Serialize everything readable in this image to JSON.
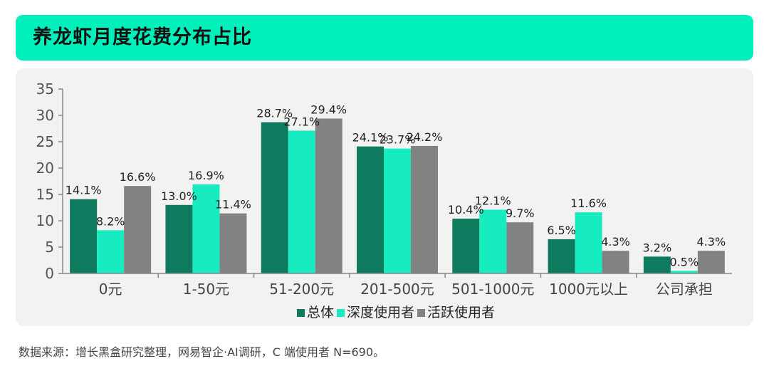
{
  "header": {
    "title": "养龙虾月度花费分布占比"
  },
  "footer": {
    "source": "数据来源：增长黑盒研究整理，网易智企·AI调研，C 端使用者 N=690。"
  },
  "colors": {
    "header_bg": "#00f0bb",
    "panel_bg": "#f2f2f2"
  },
  "chart_data": {
    "type": "bar",
    "title": "",
    "xlabel": "",
    "ylabel": "",
    "ylim": [
      0,
      35
    ],
    "yticks": [
      "0",
      "5",
      "10",
      "15",
      "20",
      "25",
      "30",
      "35"
    ],
    "grid": false,
    "legend_position": "bottom",
    "categories": [
      "0元",
      "1-50元",
      "51-200元",
      "201-500元",
      "501-1000元",
      "1000元以上",
      "公司承担"
    ],
    "series": [
      {
        "name": "总体",
        "color": "#0e7a5e",
        "values": [
          14.1,
          13.0,
          28.7,
          24.1,
          10.4,
          6.5,
          3.2
        ],
        "labels": [
          "14.1%",
          "13.0%",
          "28.7%",
          "24.1%",
          "10.4%",
          "6.5%",
          "3.2%"
        ]
      },
      {
        "name": "深度使用者",
        "color": "#17ecc1",
        "values": [
          8.2,
          16.9,
          27.1,
          23.7,
          12.1,
          11.6,
          0.5
        ],
        "labels": [
          "8.2%",
          "16.9%",
          "27.1%",
          "23.7%",
          "12.1%",
          "11.6%",
          "0.5%"
        ]
      },
      {
        "name": "活跃使用者",
        "color": "#828282",
        "values": [
          16.6,
          11.4,
          29.4,
          24.2,
          9.7,
          4.3,
          4.3
        ],
        "labels": [
          "16.6%",
          "11.4%",
          "29.4%",
          "24.2%",
          "9.7%",
          "4.3%",
          "4.3%"
        ]
      }
    ]
  }
}
